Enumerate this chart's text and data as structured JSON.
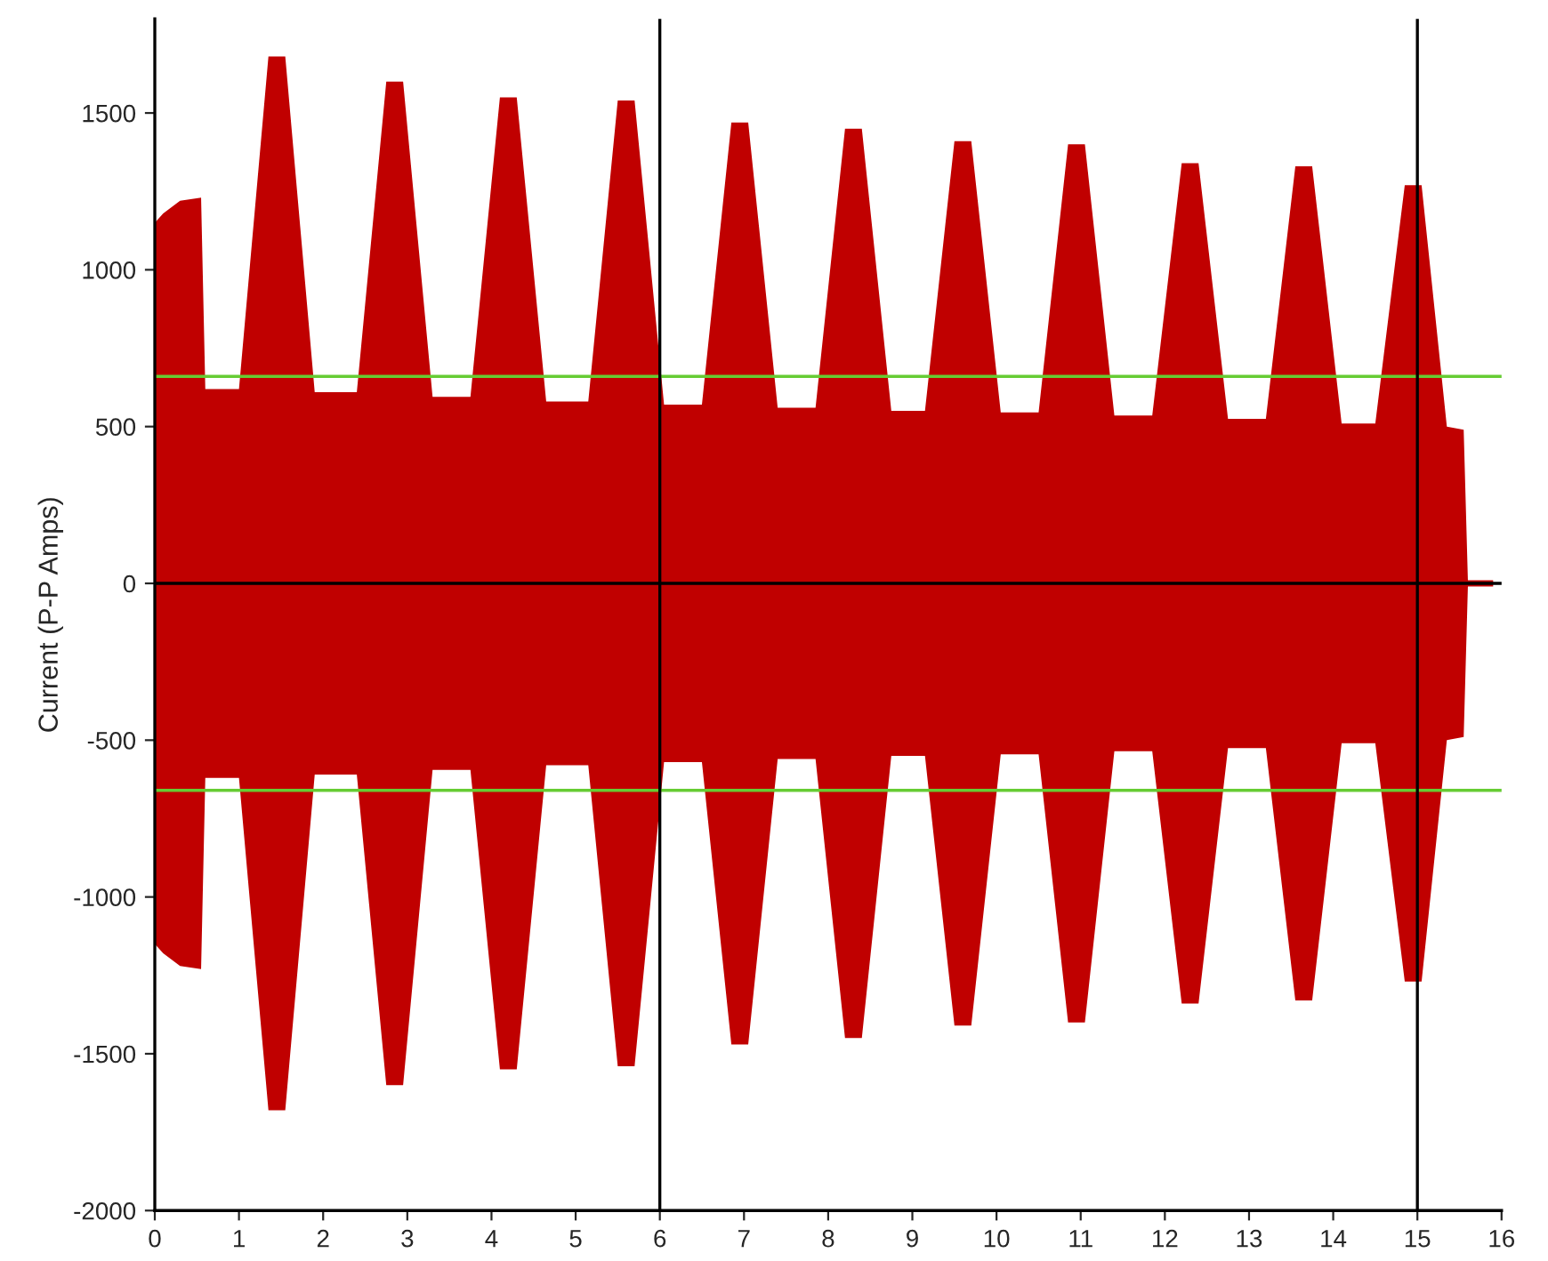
{
  "chart_data": {
    "type": "area",
    "ylabel": "Current (P-P Amps)",
    "x": [
      0,
      0.1,
      0.3,
      0.55,
      0.6,
      1.0,
      1.35,
      1.55,
      1.9,
      2.4,
      2.75,
      2.95,
      3.3,
      3.75,
      4.1,
      4.3,
      4.65,
      5.15,
      5.5,
      5.7,
      6.05,
      6.5,
      6.85,
      7.05,
      7.4,
      7.85,
      8.2,
      8.4,
      8.75,
      9.15,
      9.5,
      9.7,
      10.05,
      10.5,
      10.85,
      11.05,
      11.4,
      11.85,
      12.2,
      12.4,
      12.75,
      13.2,
      13.55,
      13.75,
      14.1,
      14.5,
      14.85,
      15.05,
      15.35,
      15.55,
      15.6,
      15.9
    ],
    "series": [
      {
        "color": "#c00000",
        "values": [
          1150,
          1180,
          1220,
          1230,
          620,
          620,
          1680,
          1680,
          610,
          610,
          1600,
          1600,
          595,
          595,
          1550,
          1550,
          580,
          580,
          1540,
          1540,
          570,
          570,
          1470,
          1470,
          560,
          560,
          1450,
          1450,
          550,
          550,
          1410,
          1410,
          545,
          545,
          1400,
          1400,
          535,
          535,
          1340,
          1340,
          525,
          525,
          1330,
          1330,
          510,
          510,
          1270,
          1270,
          500,
          490,
          10,
          10
        ]
      },
      {
        "color": "#c00000",
        "values": [
          -1150,
          -1180,
          -1220,
          -1230,
          -620,
          -620,
          -1680,
          -1680,
          -610,
          -610,
          -1600,
          -1600,
          -595,
          -595,
          -1550,
          -1550,
          -580,
          -580,
          -1540,
          -1540,
          -570,
          -570,
          -1470,
          -1470,
          -560,
          -560,
          -1450,
          -1450,
          -550,
          -550,
          -1410,
          -1410,
          -545,
          -545,
          -1400,
          -1400,
          -535,
          -535,
          -1340,
          -1340,
          -525,
          -525,
          -1330,
          -1330,
          -510,
          -510,
          -1270,
          -1270,
          -500,
          -490,
          -10,
          -10
        ]
      }
    ],
    "xlim": [
      0,
      16
    ],
    "xticks": [
      0,
      1,
      2,
      3,
      4,
      5,
      6,
      7,
      8,
      9,
      10,
      11,
      12,
      13,
      14,
      15,
      16
    ],
    "ylim": [
      -2000,
      1800
    ],
    "yticks": [
      -2000,
      -1500,
      -1000,
      -500,
      0,
      500,
      1000,
      1500
    ],
    "ref_lines": [
      {
        "axis": "y",
        "value": 0,
        "color": "#000000"
      },
      {
        "axis": "y",
        "value": 660,
        "color": "#66cc33"
      },
      {
        "axis": "y",
        "value": -660,
        "color": "#66cc33"
      },
      {
        "axis": "x",
        "value": 6,
        "color": "#000000"
      },
      {
        "axis": "x",
        "value": 15,
        "color": "#000000"
      }
    ],
    "grid": false,
    "legend": false
  }
}
